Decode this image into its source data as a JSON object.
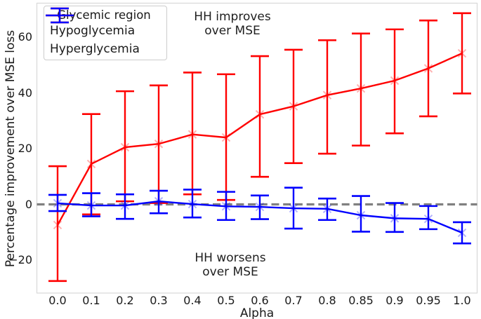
{
  "legend": {
    "title": "Glycemic region",
    "entries": [
      {
        "label": "Hypoglycemia",
        "color": "#ff0000"
      },
      {
        "label": "Hyperglycemia",
        "color": "#0000ff"
      }
    ]
  },
  "colors": {
    "hypoglycemia": "#ff0000",
    "hyperglycemia": "#0000ff",
    "zero_line": "#808080",
    "spine": "#d8d8d8",
    "text": "#1a1a1a"
  },
  "chart_data": {
    "type": "line",
    "title": "",
    "xlabel": "Alpha",
    "ylabel": "Percentage improvement over MSE loss",
    "categories": [
      "0.0",
      "0.1",
      "0.2",
      "0.3",
      "0.4",
      "0.5",
      "0.6",
      "0.7",
      "0.8",
      "0.85",
      "0.9",
      "0.95",
      "1.0"
    ],
    "y_ticks": {
      "values": [
        60,
        40,
        20,
        0,
        -20
      ],
      "labels": [
        "60",
        "40",
        "20",
        "0",
        "−20"
      ]
    },
    "ylim": [
      -31.8,
      72.2
    ],
    "grid": false,
    "zero_line": {
      "value": 0,
      "style": "dashed",
      "color": "#808080"
    },
    "legend_position": "upper-left",
    "series": [
      {
        "name": "Hypoglycemia",
        "color": "#ff0000",
        "marker": "x",
        "values": [
          -7.4,
          14.5,
          20.5,
          21.7,
          25.1,
          24.0,
          32.3,
          35.2,
          39.2,
          41.6,
          44.4,
          48.8,
          54.2
        ],
        "err_lower": [
          -27.5,
          -3.6,
          1.1,
          0.5,
          3.6,
          1.6,
          9.9,
          14.8,
          18.2,
          21.1,
          25.5,
          31.6,
          39.8
        ],
        "err_upper": [
          13.7,
          32.4,
          40.6,
          42.7,
          47.3,
          46.7,
          53.2,
          55.5,
          58.9,
          61.3,
          62.8,
          66.0,
          68.6
        ]
      },
      {
        "name": "Hyperglycemia",
        "color": "#0000ff",
        "marker": "x",
        "values": [
          0.4,
          -0.4,
          -0.4,
          1.1,
          0.1,
          -0.7,
          -0.9,
          -1.4,
          -1.6,
          -3.9,
          -5.0,
          -5.2,
          -10.2
        ],
        "err_lower": [
          -2.4,
          -4.3,
          -5.2,
          -3.2,
          -4.7,
          -5.6,
          -5.3,
          -8.7,
          -5.6,
          -9.8,
          -9.9,
          -8.9,
          -14.0
        ],
        "err_upper": [
          3.4,
          4.0,
          3.6,
          4.9,
          5.3,
          4.5,
          3.2,
          6.0,
          2.1,
          3.0,
          0.5,
          -0.6,
          -6.4
        ]
      }
    ],
    "annotations": [
      {
        "lines": [
          "HH improves",
          "over MSE"
        ],
        "position": "top-center"
      },
      {
        "lines": [
          "HH worsens",
          "over MSE"
        ],
        "position": "bottom-center"
      }
    ]
  }
}
